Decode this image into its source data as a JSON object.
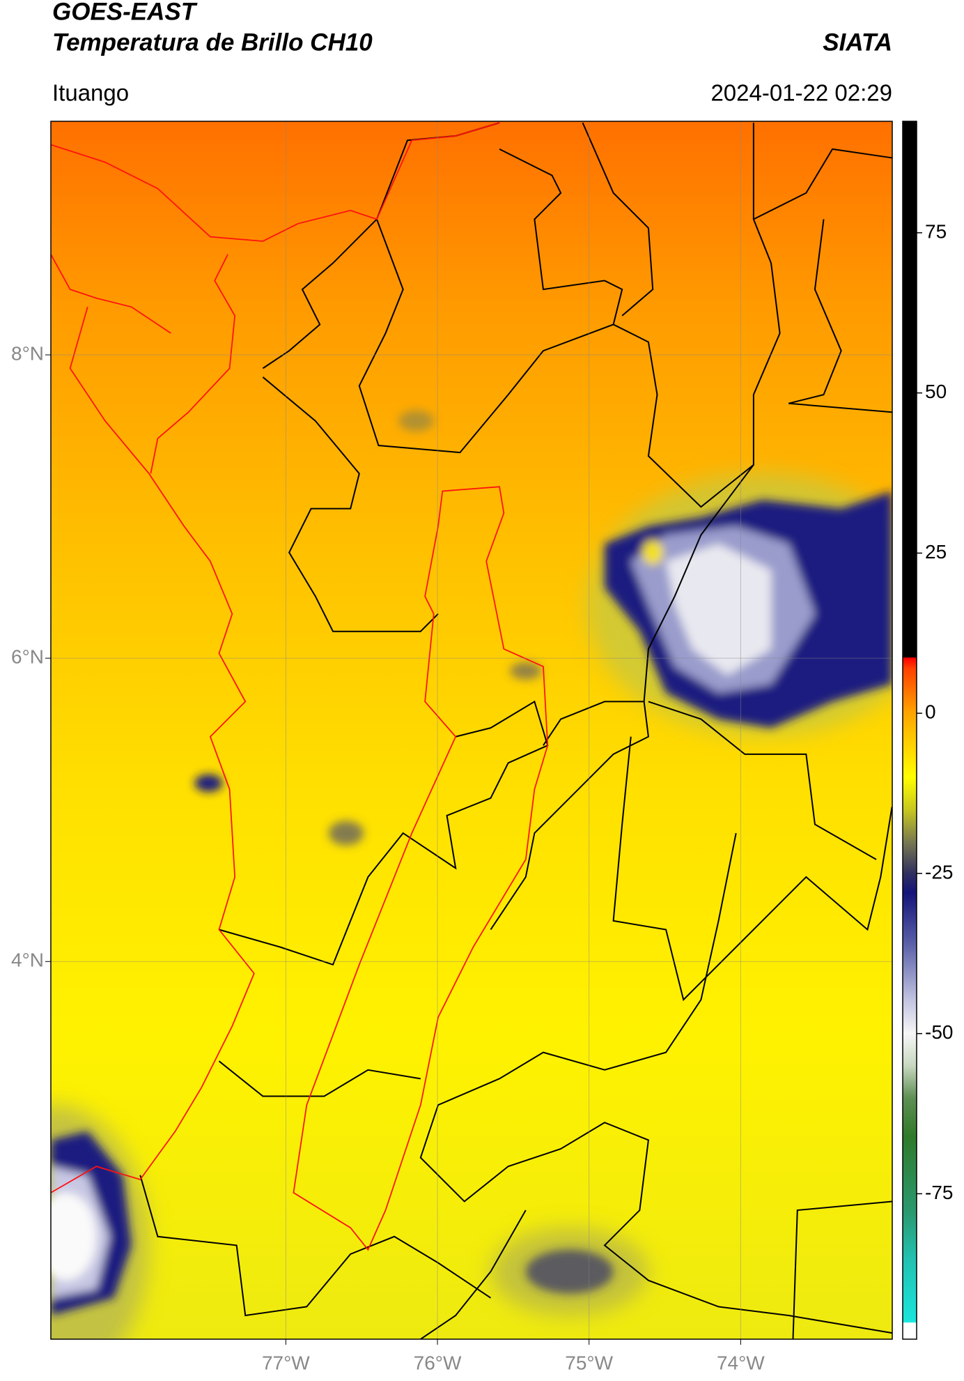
{
  "header": {
    "title": "GOES-EAST",
    "subtitle": "Temperatura de Brillo CH10",
    "source": "SIATA",
    "location": "Ituango",
    "datetime": "2024-01-22 02:29"
  },
  "map": {
    "type": "map",
    "xlim": [
      -78.55,
      -73.0
    ],
    "ylim": [
      1.51,
      9.54
    ],
    "xticks": [
      {
        "value": -77,
        "label": "77°W"
      },
      {
        "value": -76,
        "label": "76°W"
      },
      {
        "value": -75,
        "label": "75°W"
      },
      {
        "value": -74,
        "label": "74°W"
      }
    ],
    "yticks": [
      {
        "value": 8,
        "label": "8°N"
      },
      {
        "value": 6,
        "label": "6°N"
      },
      {
        "value": 4,
        "label": "4°N"
      }
    ],
    "grid": true
  },
  "colorbar": {
    "clim": [
      -97.7,
      92.4
    ],
    "ticks": [
      75,
      50,
      25,
      0,
      -25,
      -50,
      -75
    ],
    "colormap": [
      [
        -97.7,
        "#ffffff"
      ],
      [
        -95.2,
        "#ffffff"
      ],
      [
        -95,
        "#19e6dc"
      ],
      [
        -85,
        "#22c0b0"
      ],
      [
        -78,
        "#2a9a70"
      ],
      [
        -66,
        "#2f7a2a"
      ],
      [
        -60,
        "#5f9055"
      ],
      [
        -55,
        "#c8d8c0"
      ],
      [
        -50,
        "#f6f6f6"
      ],
      [
        -45,
        "#c4c6e2"
      ],
      [
        -36,
        "#5a60a8"
      ],
      [
        -28,
        "#14147a"
      ],
      [
        -25,
        "#303060"
      ],
      [
        -20,
        "#7a7a50"
      ],
      [
        -15,
        "#c8c820"
      ],
      [
        -10,
        "#ffff00"
      ],
      [
        0,
        "#ffa500"
      ],
      [
        7,
        "#ff4000"
      ],
      [
        8.6,
        "#ff0000"
      ],
      [
        8.8,
        "#000000"
      ],
      [
        92.4,
        "#000000"
      ]
    ]
  }
}
